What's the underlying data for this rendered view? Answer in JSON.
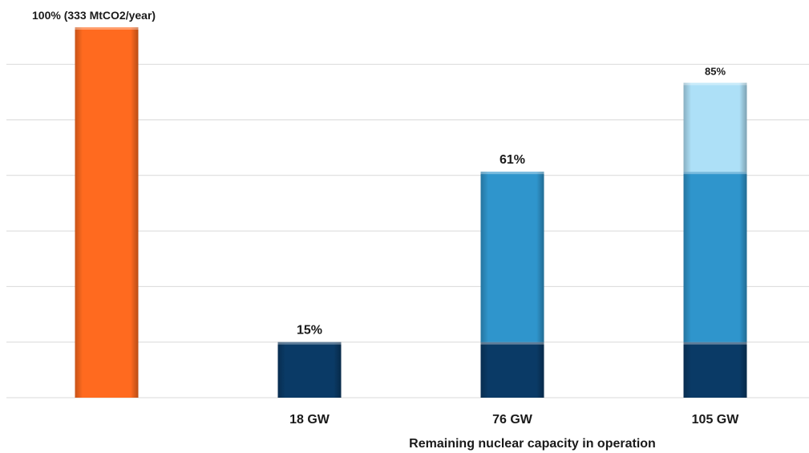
{
  "chart_data": {
    "type": "bar",
    "stacked": true,
    "categories": [
      "",
      "18 GW",
      "76 GW",
      "105 GW"
    ],
    "series": [
      {
        "values": [
          100,
          0,
          0,
          0
        ],
        "color": "#ff6a1f"
      },
      {
        "values": [
          0,
          15,
          15,
          15
        ],
        "color": "#0a3a66"
      },
      {
        "values": [
          0,
          0,
          46,
          46
        ],
        "color": "#2f95cc"
      },
      {
        "values": [
          0,
          0,
          0,
          24
        ],
        "color": "#ade0f7"
      }
    ],
    "data_labels": [
      {
        "category_index": 0,
        "value": 100,
        "text": "100% (333 MtCO2/year)"
      },
      {
        "category_index": 1,
        "value": 15,
        "text": "15%"
      },
      {
        "category_index": 2,
        "value": 61,
        "text": "61%"
      },
      {
        "category_index": 3,
        "value": 85,
        "text": "85%",
        "muted": true
      }
    ],
    "xlabel": "Remaining nuclear capacity in operation",
    "ylabel": "",
    "ylim": [
      0,
      100
    ],
    "grid_step": 15,
    "grid": true,
    "legend": "none",
    "colors": {
      "grid": "#d9d9d9",
      "label_muted": "#555555"
    }
  }
}
